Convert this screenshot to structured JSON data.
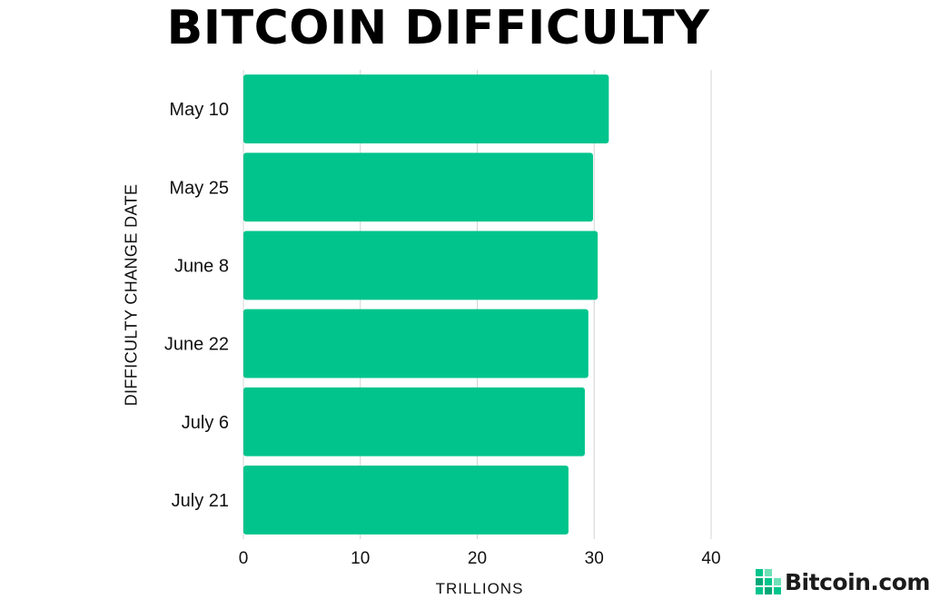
{
  "chart_data": {
    "type": "bar",
    "orientation": "horizontal",
    "title": "BITCOIN DIFFICULTY",
    "xlabel": "TRILLIONS",
    "ylabel": "DIFFICULTY CHANGE DATE",
    "categories": [
      "May 10",
      "May 25",
      "June 8",
      "June 22",
      "July 6",
      "July 21"
    ],
    "values": [
      31.25,
      29.9,
      30.3,
      29.5,
      29.2,
      27.8
    ],
    "xlim": [
      0,
      40
    ],
    "xticks": [
      0,
      10,
      20,
      30,
      40
    ],
    "grid": true,
    "bar_color": "#00c48c",
    "grid_color": "#d4d4d4"
  },
  "brand": {
    "name": "Bitcoin.com",
    "icon": "bitcoin-com-logo-icon",
    "color": "#1b1b1b",
    "icon_color": "#00c48c"
  }
}
